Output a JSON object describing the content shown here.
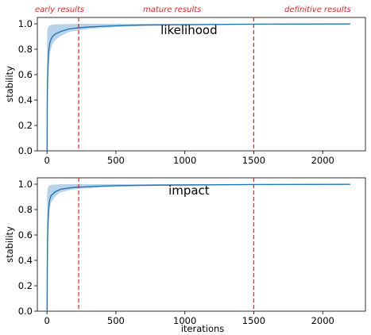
{
  "colors": {
    "line": "#1f77b4",
    "band": "#a6c8e4",
    "marker": "#d62728",
    "label": "#e8241c"
  },
  "chart_data": {
    "type": "line",
    "phase_labels": [
      "early results",
      "mature results",
      "definitive results"
    ],
    "phase_boundaries": [
      230,
      1500
    ],
    "shared_xlabel": "iterations",
    "panels": [
      {
        "title": "likelihood",
        "ylabel": "stability",
        "xlim": [
          -70,
          2310
        ],
        "ylim": [
          0,
          1.05
        ],
        "xticks": [
          0,
          500,
          1000,
          1500,
          2000
        ],
        "yticks": [
          0.0,
          0.2,
          0.4,
          0.6,
          0.8,
          1.0
        ],
        "series": [
          {
            "x": [
              1,
              2,
              4,
              6,
              8,
              12,
              16,
              20,
              30,
              40,
              50,
              60,
              80,
              100,
              130,
              160,
              200,
              250,
              300,
              400,
              500,
              700,
              900,
              1200,
              1500,
              1800,
              2200
            ],
            "values": [
              0.0,
              0.4,
              0.55,
              0.62,
              0.7,
              0.78,
              0.82,
              0.85,
              0.88,
              0.9,
              0.91,
              0.92,
              0.93,
              0.94,
              0.95,
              0.96,
              0.965,
              0.97,
              0.975,
              0.98,
              0.985,
              0.99,
              0.992,
              0.995,
              0.997,
              0.998,
              0.999
            ]
          }
        ]
      },
      {
        "title": "impact",
        "ylabel": "stability",
        "xlim": [
          -70,
          2310
        ],
        "ylim": [
          0,
          1.05
        ],
        "xticks": [
          0,
          500,
          1000,
          1500,
          2000
        ],
        "yticks": [
          0.0,
          0.2,
          0.4,
          0.6,
          0.8,
          1.0
        ],
        "series": [
          {
            "x": [
              1,
              2,
              4,
              6,
              8,
              12,
              16,
              20,
              30,
              40,
              50,
              60,
              80,
              100,
              130,
              160,
              200,
              250,
              300,
              400,
              500,
              700,
              900,
              1200,
              1500,
              1800,
              2200
            ],
            "values": [
              0.0,
              0.3,
              0.55,
              0.65,
              0.72,
              0.8,
              0.85,
              0.88,
              0.91,
              0.92,
              0.93,
              0.94,
              0.95,
              0.96,
              0.965,
              0.97,
              0.975,
              0.978,
              0.98,
              0.985,
              0.988,
              0.991,
              0.993,
              0.995,
              0.997,
              0.998,
              0.999
            ]
          }
        ]
      }
    ]
  }
}
